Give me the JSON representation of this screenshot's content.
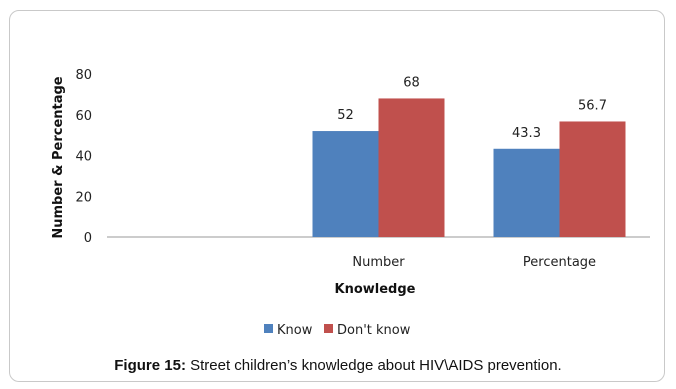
{
  "chart_data": {
    "type": "bar",
    "categories": [
      "Number",
      "Percentage"
    ],
    "series": [
      {
        "name": "Know",
        "values": [
          52,
          43.3
        ],
        "color": "#4f81bd"
      },
      {
        "name": "Don't know",
        "values": [
          68,
          56.7
        ],
        "color": "#c0504d"
      }
    ],
    "xlabel": "Knowledge",
    "ylabel": "Number & Percentage",
    "ylim": [
      0,
      80
    ],
    "yticks": [
      0,
      20,
      40,
      60,
      80
    ],
    "grid": false,
    "legend_position": "bottom"
  },
  "caption": {
    "label": "Figure 15:",
    "text": " Street children’s knowledge about HIV\\AIDS prevention."
  }
}
